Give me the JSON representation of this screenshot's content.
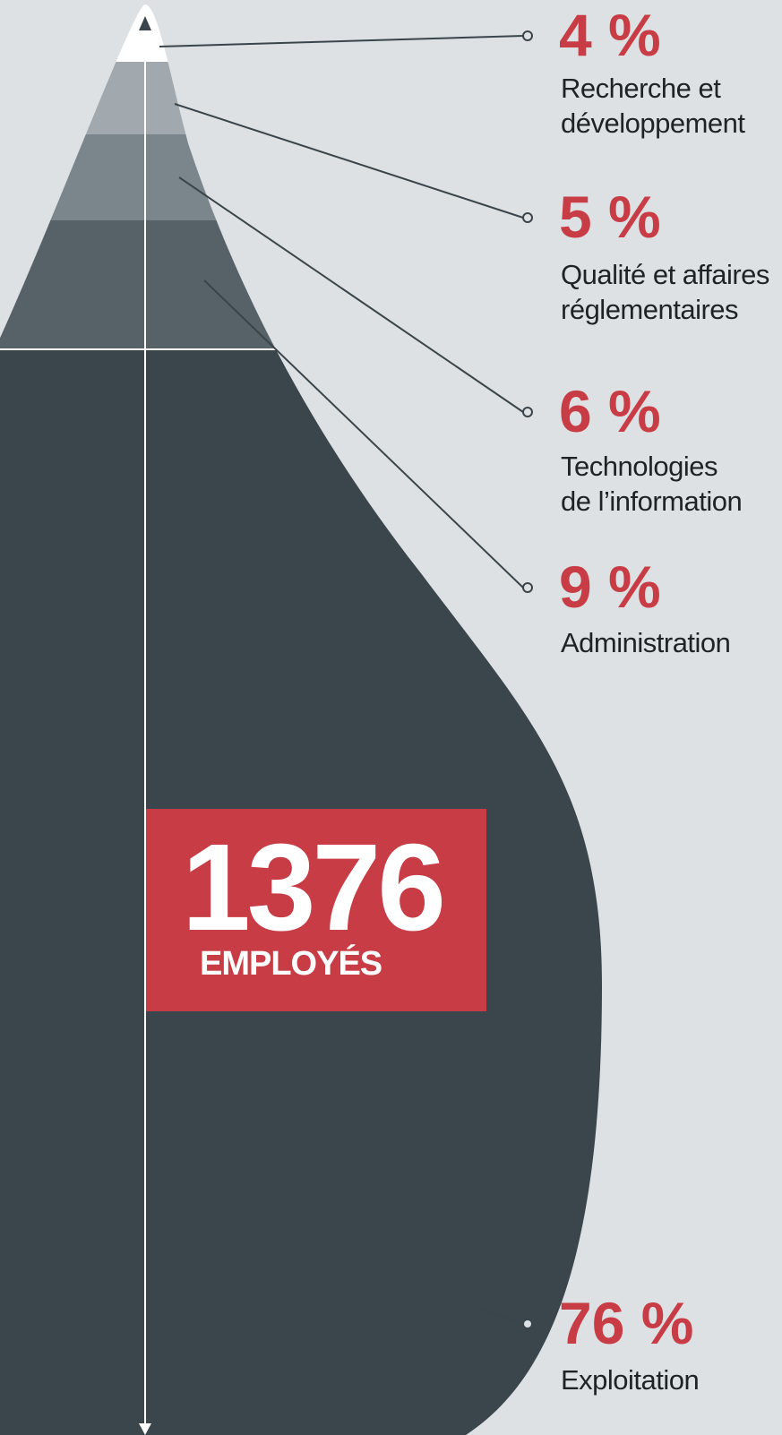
{
  "colors": {
    "background": "#dee1e3",
    "accent": "#c83d45",
    "text": "#1e2326",
    "line": "#3a454b",
    "segments": [
      "#ffffff",
      "#a1a9ae",
      "#7b868c",
      "#566168",
      "#3a464c"
    ]
  },
  "chart_data": {
    "type": "pie",
    "total": {
      "value": "1376",
      "label": "EMPLOYÉS"
    },
    "segments": [
      {
        "percent": "4 %",
        "value": 4,
        "label_lines": [
          "Recherche et",
          "développement"
        ]
      },
      {
        "percent": "5 %",
        "value": 5,
        "label_lines": [
          "Qualité et affaires",
          "réglementaires"
        ]
      },
      {
        "percent": "6 %",
        "value": 6,
        "label_lines": [
          "Technologies",
          "de l’information"
        ]
      },
      {
        "percent": "9 %",
        "value": 9,
        "label_lines": [
          "Administration"
        ]
      },
      {
        "percent": "76 %",
        "value": 76,
        "label_lines": [
          "Exploitation"
        ]
      }
    ]
  }
}
